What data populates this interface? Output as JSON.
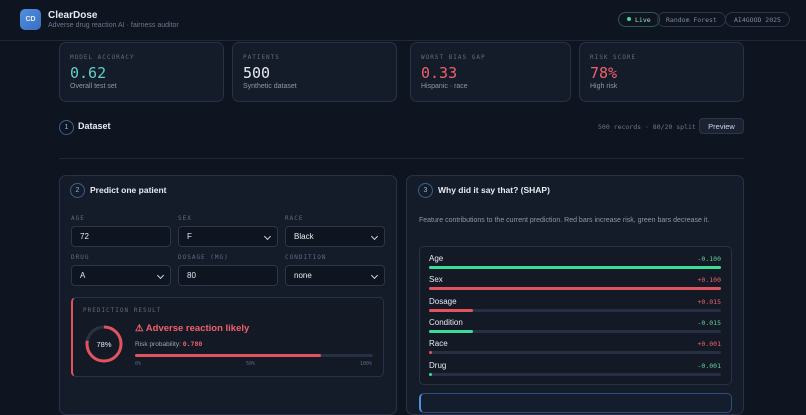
{
  "header": {
    "logo": "CD",
    "title": "ClearDose",
    "subtitle": "Adverse drug reaction AI · fairness auditor",
    "badges": [
      "Live",
      "Random Forest",
      "AI4GOOD 2025"
    ]
  },
  "stats": [
    {
      "label": "MODEL ACCURACY",
      "value": "0.62",
      "note": "Overall test set"
    },
    {
      "label": "PATIENTS",
      "value": "500",
      "note": "Synthetic dataset"
    },
    {
      "label": "WORST BIAS GAP",
      "value": "0.33",
      "note": "Hispanic · race"
    },
    {
      "label": "RISK SCORE",
      "value": "78%",
      "note": "High risk"
    }
  ],
  "dataset": {
    "step": "1",
    "title": "Dataset",
    "meta": "500 records · 80/20 split",
    "button": "Preview"
  },
  "predict": {
    "step": "2",
    "title": "Predict one patient",
    "fields": [
      {
        "label": "AGE",
        "value": "72"
      },
      {
        "label": "SEX",
        "value": "F"
      },
      {
        "label": "RACE",
        "value": "Black"
      },
      {
        "label": "DRUG",
        "value": "A"
      },
      {
        "label": "DOSAGE (MG)",
        "value": "80"
      },
      {
        "label": "CONDITION",
        "value": "none"
      }
    ],
    "result": {
      "label": "PREDICTION RESULT",
      "gauge": "78%",
      "headline": "⚠ Adverse reaction likely",
      "probability_label": "Risk probability:",
      "probability": "0.780",
      "scale": [
        "0%",
        "50%",
        "100%"
      ]
    }
  },
  "shap": {
    "step": "3",
    "title": "Why did it say that? (SHAP)",
    "description": "Feature contributions to the current prediction. Red bars increase risk, green bars decrease it.",
    "features": [
      {
        "name": "Age",
        "value": "-0.100"
      },
      {
        "name": "Sex",
        "value": "+0.100"
      },
      {
        "name": "Dosage",
        "value": "+0.015"
      },
      {
        "name": "Condition",
        "value": "-0.015"
      },
      {
        "name": "Race",
        "value": "+0.001"
      },
      {
        "name": "Drug",
        "value": "-0.001"
      }
    ]
  }
}
